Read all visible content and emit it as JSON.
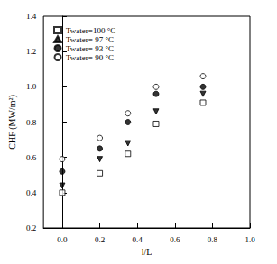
{
  "chart_data": {
    "type": "scatter",
    "x_label": "l/L",
    "y_label": "CHF (MW/m²)",
    "xlim": [
      -0.1,
      1.0
    ],
    "xticks": [
      {
        "value": 0.0,
        "label": "0.0"
      },
      0.2,
      0.4,
      0.6,
      0.8,
      {
        "value": 1.0,
        "label": "1.0"
      }
    ],
    "ylim": [
      0.2,
      1.4
    ],
    "yticks": [
      0.2,
      0.4,
      0.6,
      0.8,
      {
        "value": 1.0,
        "label": "1.0"
      },
      1.2,
      1.4
    ],
    "grid": false,
    "legend": "top-left",
    "series": [
      {
        "name": "Twater=100 °C",
        "color": "#000000",
        "marker": "square-open",
        "x": [
          0.0,
          0.2,
          0.35,
          0.5,
          0.75
        ],
        "values": [
          0.4,
          0.51,
          0.62,
          0.79,
          0.91
        ]
      },
      {
        "name": "Twater= 97 °C",
        "color": "#000000",
        "marker": "triangle-down",
        "x": [
          0.0,
          0.2,
          0.35,
          0.5,
          0.75
        ],
        "values": [
          0.44,
          0.59,
          0.68,
          0.86,
          0.96
        ]
      },
      {
        "name": "Twater= 93 °C",
        "color": "#000000",
        "marker": "circle",
        "x": [
          0.0,
          0.2,
          0.35,
          0.5,
          0.75
        ],
        "values": [
          0.52,
          0.65,
          0.8,
          0.96,
          1.0
        ]
      },
      {
        "name": "Twater= 90 °C",
        "color": "#000000",
        "marker": "circle-open",
        "x": [
          0.0,
          0.2,
          0.35,
          0.5,
          0.75
        ],
        "values": [
          0.59,
          0.71,
          0.85,
          1.0,
          1.06
        ]
      }
    ]
  }
}
